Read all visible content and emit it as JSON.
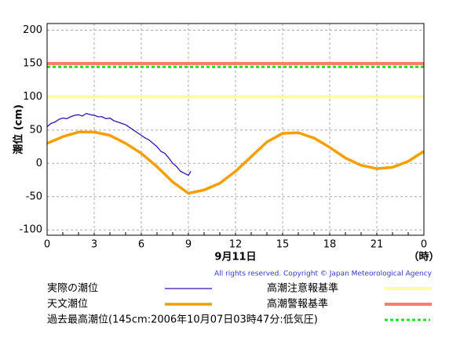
{
  "chart_data": {
    "type": "line",
    "y_label": "潮位 (cm)",
    "x_label": "9月11日",
    "x_unit": "（時）",
    "copyright": "All rights reserved. Copyright © Japan Meteorological Agency",
    "xlim": [
      0,
      24
    ],
    "xticks": [
      0,
      3,
      6,
      9,
      12,
      15,
      18,
      21,
      {
        "value": 24,
        "label": "0"
      }
    ],
    "ylim": [
      -108,
      210
    ],
    "yticks": [
      -100,
      -50,
      0,
      50,
      100,
      150,
      200
    ],
    "grid": true,
    "series": [
      {
        "name": "実際の潮位",
        "color": "#3311aa",
        "x": [
          0,
          0.25,
          0.5,
          0.75,
          1,
          1.25,
          1.5,
          1.75,
          2,
          2.25,
          2.5,
          2.75,
          3,
          3.25,
          3.5,
          3.75,
          4,
          4.25,
          4.5,
          4.75,
          5,
          5.25,
          5.5,
          5.75,
          6,
          6.25,
          6.5,
          6.75,
          7,
          7.25,
          7.5,
          7.75,
          8,
          8.25,
          8.5,
          8.75,
          9,
          9.15
        ],
        "values": [
          55,
          60,
          62,
          66,
          68,
          67,
          70,
          72,
          73,
          71,
          75,
          73,
          72,
          70,
          70,
          67,
          68,
          64,
          62,
          60,
          58,
          54,
          50,
          46,
          42,
          38,
          35,
          30,
          25,
          18,
          15,
          8,
          0,
          -5,
          -12,
          -15,
          -18,
          -12
        ]
      },
      {
        "name": "天文潮位",
        "color": "#f5a000",
        "x": [
          0,
          1,
          2,
          3,
          4,
          5,
          6,
          7,
          8,
          9,
          10,
          11,
          12,
          13,
          14,
          15,
          16,
          17,
          18,
          19,
          20,
          21,
          22,
          23,
          24
        ],
        "values": [
          30,
          40,
          47,
          47,
          42,
          30,
          15,
          -5,
          -28,
          -45,
          -40,
          -30,
          -12,
          10,
          32,
          45,
          46,
          38,
          24,
          8,
          -3,
          -8,
          -6,
          3,
          18
        ]
      }
    ],
    "reference_lines": [
      {
        "name": "高潮注意報基準",
        "value": 100,
        "color": "#ffff99",
        "style": "solid"
      },
      {
        "name": "高潮警報基準",
        "value": 150,
        "color": "#f58070",
        "style": "solid"
      },
      {
        "name": "過去最高潮位(145cm:2006年10月07日03時47分:低気圧)",
        "value": 145,
        "color": "#22dd22",
        "style": "dashed"
      }
    ]
  }
}
